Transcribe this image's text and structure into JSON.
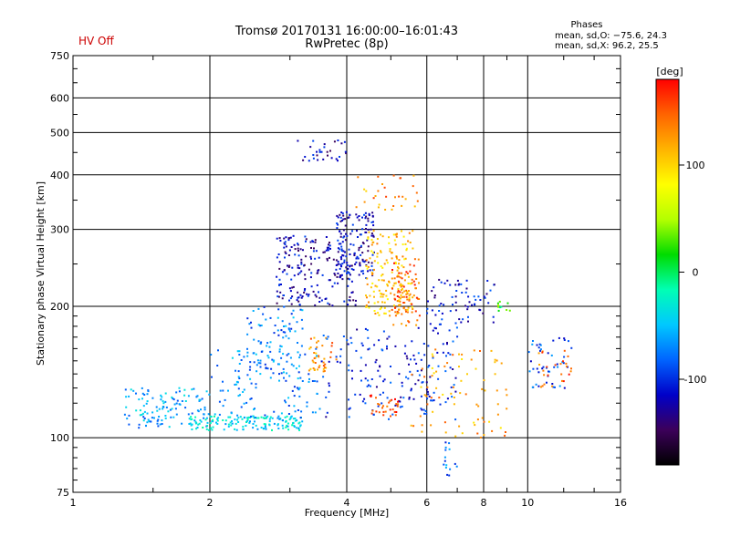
{
  "header": {
    "status": "HV Off",
    "title_line1": "Tromsø 20170131 16:00:00–16:01:43",
    "title_line2": "RwPretec (8p)",
    "phase_title": "Phases",
    "phase_o": "mean, sd,O:  −75.6,  24.3",
    "phase_x": "mean, sd,X:   96.2,  25.5"
  },
  "colors": {
    "status": "#cc0000",
    "grid": "#000000"
  },
  "chart_data": {
    "type": "scatter",
    "xlabel": "Frequency [MHz]",
    "ylabel": "Stationary phase Virtual Height [km]",
    "x_scale": "log",
    "y_scale": "log",
    "xlim": [
      1,
      16
    ],
    "ylim": [
      75,
      750
    ],
    "x_ticks": [
      1,
      2,
      4,
      6,
      8,
      10,
      16
    ],
    "y_ticks": [
      75,
      100,
      200,
      300,
      400,
      500,
      600,
      750
    ],
    "grid": true,
    "colorbar": {
      "label": "[deg]",
      "range": [
        -180,
        180
      ],
      "ticks": [
        100,
        0,
        -100
      ],
      "colormap": [
        "#000000",
        "#3c005a",
        "#0000c8",
        "#0064ff",
        "#00c8ff",
        "#00ffb4",
        "#00dc00",
        "#b4ff00",
        "#ffff00",
        "#ffb400",
        "#ff6400",
        "#ff0000"
      ]
    },
    "clusters": [
      {
        "fmin": 1.3,
        "fmax": 2.0,
        "hmin": 105,
        "hmax": 130,
        "phase": -60,
        "count": 120
      },
      {
        "fmin": 1.8,
        "fmax": 3.2,
        "hmin": 104,
        "hmax": 112,
        "phase": -40,
        "count": 150
      },
      {
        "fmin": 2.0,
        "fmax": 3.5,
        "hmin": 110,
        "hmax": 160,
        "phase": -70,
        "count": 120
      },
      {
        "fmin": 2.4,
        "fmax": 3.2,
        "hmin": 140,
        "hmax": 200,
        "phase": -75,
        "count": 90
      },
      {
        "fmin": 2.8,
        "fmax": 4.2,
        "hmin": 200,
        "hmax": 290,
        "phase": -120,
        "count": 200
      },
      {
        "fmin": 3.8,
        "fmax": 4.6,
        "hmin": 230,
        "hmax": 330,
        "phase": -115,
        "count": 140
      },
      {
        "fmin": 4.4,
        "fmax": 5.6,
        "hmin": 190,
        "hmax": 300,
        "phase": 110,
        "count": 170
      },
      {
        "fmin": 5.0,
        "fmax": 5.8,
        "hmin": 180,
        "hmax": 260,
        "phase": 150,
        "count": 80
      },
      {
        "fmin": 3.1,
        "fmax": 4.0,
        "hmin": 430,
        "hmax": 480,
        "phase": -120,
        "count": 30
      },
      {
        "fmin": 3.3,
        "fmax": 3.8,
        "hmin": 140,
        "hmax": 170,
        "phase": 130,
        "count": 40
      },
      {
        "fmin": 3.5,
        "fmax": 7.0,
        "hmin": 110,
        "hmax": 180,
        "phase": -105,
        "count": 180
      },
      {
        "fmin": 4.5,
        "fmax": 5.2,
        "hmin": 112,
        "hmax": 125,
        "phase": 160,
        "count": 30
      },
      {
        "fmin": 6.0,
        "fmax": 8.5,
        "hmin": 180,
        "hmax": 230,
        "phase": -110,
        "count": 70
      },
      {
        "fmin": 5.5,
        "fmax": 9.0,
        "hmin": 100,
        "hmax": 160,
        "phase": 120,
        "count": 80
      },
      {
        "fmin": 10.0,
        "fmax": 12.5,
        "hmin": 130,
        "hmax": 170,
        "phase": -90,
        "count": 45
      },
      {
        "fmin": 10.5,
        "fmax": 12.5,
        "hmin": 130,
        "hmax": 160,
        "phase": 150,
        "count": 25
      },
      {
        "fmin": 8.6,
        "fmax": 9.2,
        "hmin": 195,
        "hmax": 205,
        "phase": 20,
        "count": 10
      },
      {
        "fmin": 4.2,
        "fmax": 5.8,
        "hmin": 330,
        "hmax": 400,
        "phase": 130,
        "count": 30
      },
      {
        "fmin": 6.5,
        "fmax": 7.0,
        "hmin": 80,
        "hmax": 100,
        "phase": -80,
        "count": 15
      }
    ]
  }
}
